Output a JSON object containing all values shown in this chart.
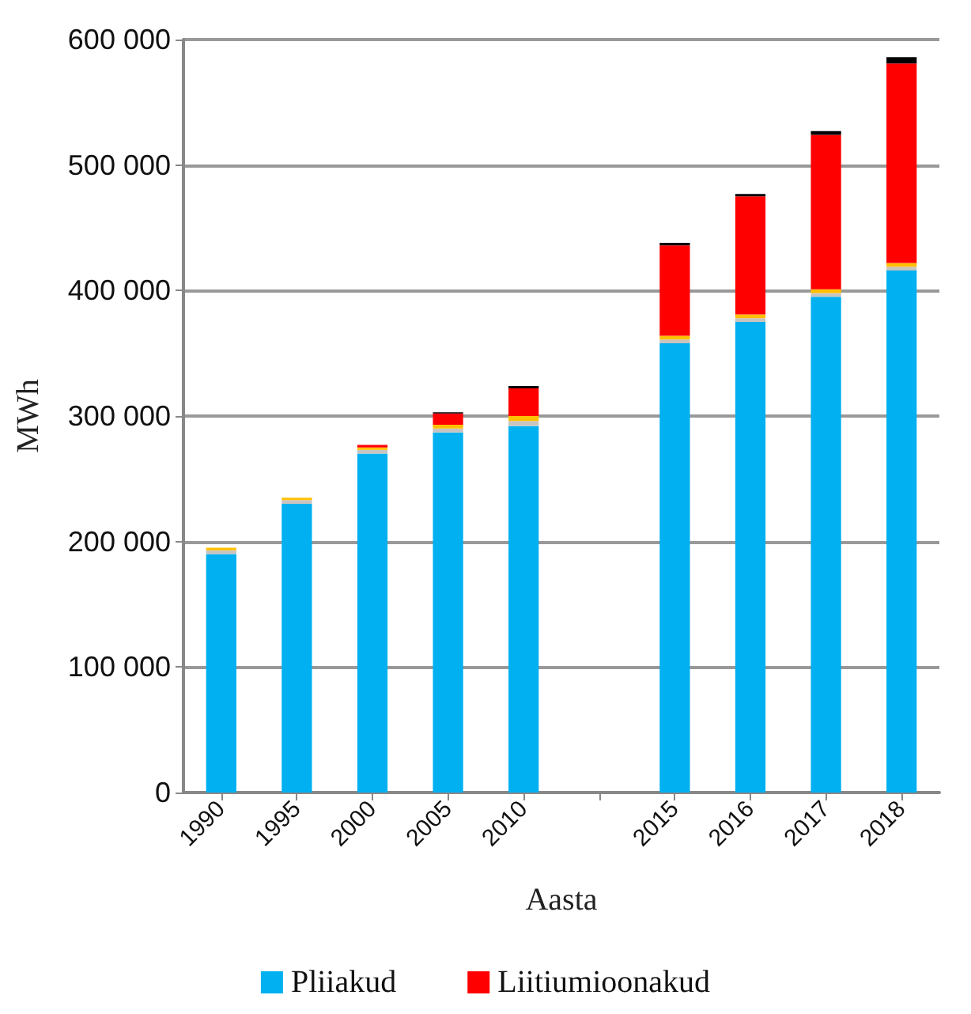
{
  "chart_data": {
    "type": "bar",
    "stacked": true,
    "xlabel": "Aasta",
    "ylabel": "MWh",
    "categories": [
      "1990",
      "1995",
      "2000",
      "2005",
      "2010",
      null,
      "2015",
      "2016",
      "2017",
      "2018"
    ],
    "series": [
      {
        "name": "Pliiakud",
        "color": "#00b0f0",
        "values": [
          190000,
          230000,
          270000,
          287000,
          292000,
          null,
          358000,
          375000,
          395000,
          416000
        ]
      },
      {
        "color": "#c8c4c0",
        "values": [
          3000,
          3000,
          3000,
          3000,
          4000,
          null,
          3000,
          3000,
          3000,
          3000
        ]
      },
      {
        "color": "#ffc000",
        "values": [
          2000,
          2000,
          2000,
          3000,
          4000,
          null,
          3000,
          3000,
          3000,
          3000
        ]
      },
      {
        "name": "Liitiumioonakud",
        "color": "#ff0000",
        "values": [
          null,
          null,
          2000,
          9000,
          22000,
          null,
          72000,
          94000,
          123000,
          159000
        ]
      },
      {
        "color": "#000000",
        "values": [
          null,
          null,
          null,
          1000,
          2000,
          null,
          2000,
          2000,
          3000,
          5000
        ]
      }
    ],
    "ylim": [
      0,
      600000
    ],
    "yticks": [
      0,
      {
        "value": 100000,
        "label": "100 000"
      },
      {
        "value": 200000,
        "label": "200 000"
      },
      {
        "value": 300000,
        "label": "300 000"
      },
      {
        "value": 400000,
        "label": "400 000"
      },
      {
        "value": 500000,
        "label": "500 000"
      },
      {
        "value": 600000,
        "label": "600 000"
      }
    ],
    "grid": "y",
    "legend": "bottom"
  }
}
